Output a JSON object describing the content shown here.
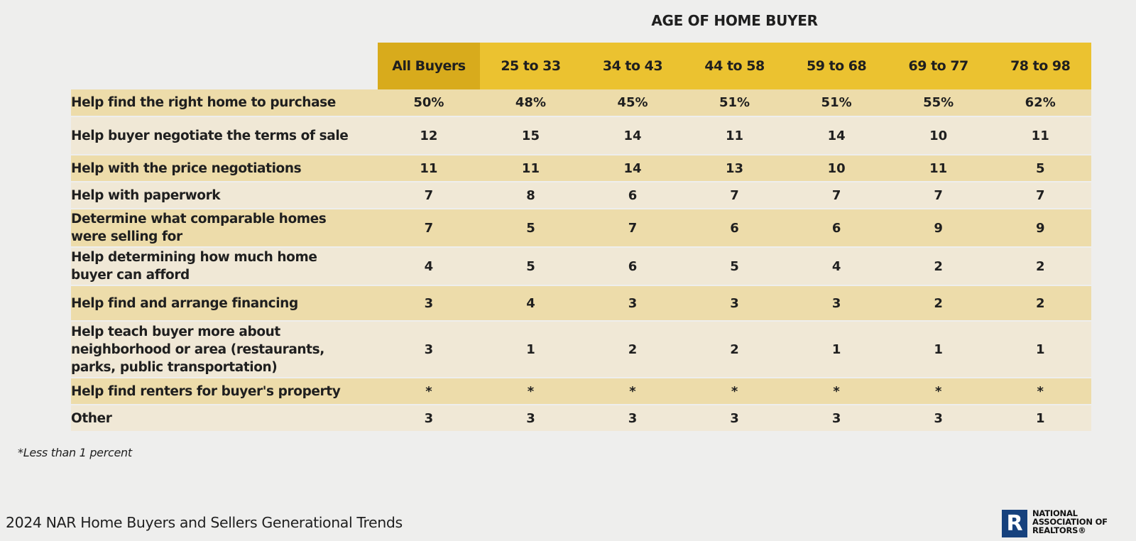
{
  "header": {
    "group_title": "AGE OF HOME BUYER",
    "columns": [
      "All Buyers",
      "25 to 33",
      "34 to 43",
      "44 to 58",
      "59 to 68",
      "69 to 77",
      "78 to 98"
    ]
  },
  "rows": [
    {
      "label": "Help find the right home to purchase",
      "values": [
        "50%",
        "48%",
        "45%",
        "51%",
        "51%",
        "55%",
        "62%"
      ]
    },
    {
      "label": "Help buyer negotiate the terms of sale",
      "values": [
        "12",
        "15",
        "14",
        "11",
        "14",
        "10",
        "11"
      ]
    },
    {
      "label": "Help with the price negotiations",
      "values": [
        "11",
        "11",
        "14",
        "13",
        "10",
        "11",
        "5"
      ]
    },
    {
      "label": "Help with paperwork",
      "values": [
        "7",
        "8",
        "6",
        "7",
        "7",
        "7",
        "7"
      ]
    },
    {
      "label": "Determine what comparable homes were selling for",
      "values": [
        "7",
        "5",
        "7",
        "6",
        "6",
        "9",
        "9"
      ]
    },
    {
      "label": "Help determining how much home buyer can afford",
      "values": [
        "4",
        "5",
        "6",
        "5",
        "4",
        "2",
        "2"
      ]
    },
    {
      "label": "Help find and arrange financing",
      "values": [
        "3",
        "4",
        "3",
        "3",
        "3",
        "2",
        "2"
      ]
    },
    {
      "label": "Help teach buyer more about neighborhood or area (restaurants, parks, public transportation)",
      "values": [
        "3",
        "1",
        "2",
        "2",
        "1",
        "1",
        "1"
      ]
    },
    {
      "label": "Help find renters for buyer's property",
      "values": [
        "*",
        "*",
        "*",
        "*",
        "*",
        "*",
        "*"
      ]
    },
    {
      "label": "Other",
      "values": [
        "3",
        "3",
        "3",
        "3",
        "3",
        "3",
        "1"
      ]
    }
  ],
  "footnote": "*Less than 1 percent",
  "source": "2024 NAR Home Buyers and Sellers Generational Trends",
  "logo": {
    "mark": "R",
    "line1": "NATIONAL",
    "line2": "ASSOCIATION OF",
    "line3": "REALTORS®"
  },
  "colors": {
    "header_gold": "#ebc230",
    "header_gold_dark": "#d8ab1c",
    "row_band": "#eddcaa",
    "row_plain": "#f0e8d6",
    "logo_blue": "#16417d"
  }
}
